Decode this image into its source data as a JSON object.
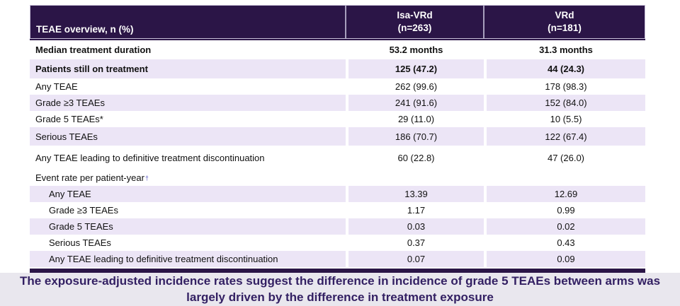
{
  "table": {
    "header": {
      "row_label": "TEAE overview, n (%)",
      "col1": {
        "arm": "Isa-VRd",
        "n": "(n=263)"
      },
      "col2": {
        "arm": "VRd",
        "n": "(n=181)"
      }
    },
    "rows": [
      {
        "label": "Median treatment duration",
        "v1": "53.2 months",
        "v2": "31.3 months",
        "bold": true,
        "shaded": false,
        "indent": false
      },
      {
        "label": "Patients still on treatment",
        "v1": "125 (47.2)",
        "v2": "44 (24.3)",
        "bold": true,
        "shaded": true,
        "indent": false
      },
      {
        "label": "Any TEAE",
        "v1": "262 (99.6)",
        "v2": "178 (98.3)",
        "bold": false,
        "shaded": false,
        "indent": false
      },
      {
        "label": "Grade ≥3 TEAEs",
        "v1": "241 (91.6)",
        "v2": "152 (84.0)",
        "bold": false,
        "shaded": true,
        "indent": false
      },
      {
        "label": "Grade 5 TEAEs*",
        "v1": "29 (11.0)",
        "v2": "10 (5.5)",
        "bold": false,
        "shaded": false,
        "indent": false
      },
      {
        "label": "Serious TEAEs",
        "v1": "186 (70.7)",
        "v2": "122 (67.4)",
        "bold": false,
        "shaded": true,
        "indent": false
      },
      {
        "label": "Any TEAE leading to definitive treatment discontinuation",
        "v1": "60 (22.8)",
        "v2": "47 (26.0)",
        "bold": false,
        "shaded": false,
        "indent": false,
        "tall": true
      },
      {
        "label": "Event rate per patient-year",
        "sup": "†",
        "v1": "",
        "v2": "",
        "bold": false,
        "shaded": false,
        "indent": false
      },
      {
        "label": "Any TEAE",
        "v1": "13.39",
        "v2": "12.69",
        "bold": false,
        "shaded": true,
        "indent": true
      },
      {
        "label": "Grade ≥3 TEAEs",
        "v1": "1.17",
        "v2": "0.99",
        "bold": false,
        "shaded": false,
        "indent": true
      },
      {
        "label": "Grade 5 TEAEs",
        "v1": "0.03",
        "v2": "0.02",
        "bold": false,
        "shaded": true,
        "indent": true
      },
      {
        "label": "Serious TEAEs",
        "v1": "0.37",
        "v2": "0.43",
        "bold": false,
        "shaded": false,
        "indent": true
      },
      {
        "label": "Any TEAE leading to definitive treatment discontinuation",
        "v1": "0.07",
        "v2": "0.09",
        "bold": false,
        "shaded": true,
        "indent": true
      }
    ]
  },
  "footer": {
    "text": "The exposure-adjusted incidence rates suggest the difference in incidence of grade 5 TEAEs between arms was largely driven by the difference in treatment exposure"
  },
  "colors": {
    "header_bg": "#2b1547",
    "stripe_bg": "#ece5f6",
    "footer_bg": "#e9e7ee",
    "footer_text": "#332063",
    "dagger": "#6361c6",
    "header_text": "#ffffff"
  }
}
